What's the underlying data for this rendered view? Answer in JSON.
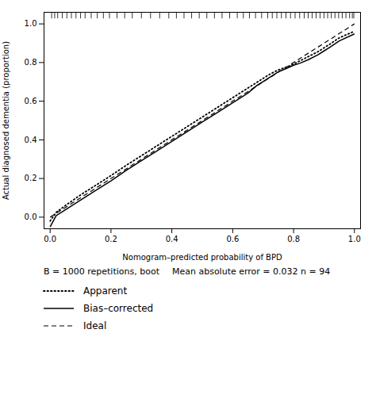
{
  "chart_data": {
    "type": "line",
    "xlabel": "Nomogram–predicted probability of BPD",
    "ylabel": "Actual diagnosed dementia (proportion)",
    "xlim": [
      -0.02,
      1.02
    ],
    "ylim": [
      -0.06,
      1.06
    ],
    "xticks": [
      {
        "value": 0.0,
        "label": "0.0"
      },
      {
        "value": 0.2,
        "label": "0.2"
      },
      {
        "value": 0.4,
        "label": "0.4"
      },
      {
        "value": 0.6,
        "label": "0.6"
      },
      {
        "value": 0.8,
        "label": "0.8"
      },
      {
        "value": 1.0,
        "label": "1.0"
      }
    ],
    "yticks": [
      {
        "value": 0.0,
        "label": "0.0"
      },
      {
        "value": 0.2,
        "label": "0.2"
      },
      {
        "value": 0.4,
        "label": "0.4"
      },
      {
        "value": 0.6,
        "label": "0.6"
      },
      {
        "value": 0.8,
        "label": "0.8"
      },
      {
        "value": 1.0,
        "label": "1.0"
      }
    ],
    "annotations": [
      "B = 1000 repetitions, boot",
      "Mean absolute error = 0.032 n = 94"
    ],
    "legend": "bottom",
    "rug": [
      0.005,
      0.015,
      0.025,
      0.04,
      0.055,
      0.07,
      0.085,
      0.1,
      0.115,
      0.135,
      0.155,
      0.175,
      0.195,
      0.22,
      0.245,
      0.27,
      0.3,
      0.33,
      0.36,
      0.39,
      0.415,
      0.44,
      0.465,
      0.49,
      0.515,
      0.54,
      0.565,
      0.59,
      0.615,
      0.635,
      0.655,
      0.675,
      0.695,
      0.715,
      0.73,
      0.745,
      0.76,
      0.775,
      0.79,
      0.805,
      0.82,
      0.835,
      0.848,
      0.861,
      0.874,
      0.887,
      0.9,
      0.912,
      0.924,
      0.936,
      0.948,
      0.96,
      0.972,
      0.984,
      0.993,
      0.998
    ],
    "series": [
      {
        "name": "Apparent",
        "color": "#000000",
        "line_style": "dotted",
        "x": [
          0.0,
          0.02,
          0.05,
          0.1,
          0.15,
          0.2,
          0.25,
          0.3,
          0.35,
          0.4,
          0.45,
          0.5,
          0.55,
          0.6,
          0.65,
          0.7,
          0.72,
          0.75,
          0.78,
          0.8,
          0.82,
          0.85,
          0.88,
          0.9,
          0.92,
          0.95,
          1.0
        ],
        "values": [
          -0.02,
          0.025,
          0.06,
          0.115,
          0.165,
          0.215,
          0.268,
          0.318,
          0.368,
          0.418,
          0.468,
          0.518,
          0.568,
          0.618,
          0.668,
          0.718,
          0.738,
          0.762,
          0.778,
          0.792,
          0.808,
          0.832,
          0.856,
          0.876,
          0.896,
          0.928,
          0.962
        ]
      },
      {
        "name": "Bias–corrected",
        "color": "#000000",
        "line_style": "solid",
        "x": [
          0.0,
          0.02,
          0.05,
          0.1,
          0.15,
          0.2,
          0.25,
          0.3,
          0.35,
          0.4,
          0.45,
          0.5,
          0.55,
          0.6,
          0.63,
          0.65,
          0.68,
          0.7,
          0.72,
          0.75,
          0.78,
          0.8,
          0.82,
          0.85,
          0.88,
          0.9,
          0.92,
          0.95,
          1.0
        ],
        "values": [
          -0.05,
          0.008,
          0.038,
          0.088,
          0.138,
          0.188,
          0.242,
          0.292,
          0.342,
          0.392,
          0.442,
          0.492,
          0.542,
          0.592,
          0.622,
          0.642,
          0.682,
          0.702,
          0.722,
          0.752,
          0.772,
          0.786,
          0.796,
          0.816,
          0.84,
          0.86,
          0.88,
          0.912,
          0.948
        ]
      },
      {
        "name": "Ideal",
        "color": "#000000",
        "line_style": "dashed",
        "x": [
          0.0,
          1.0
        ],
        "values": [
          0.0,
          1.0
        ]
      }
    ]
  }
}
